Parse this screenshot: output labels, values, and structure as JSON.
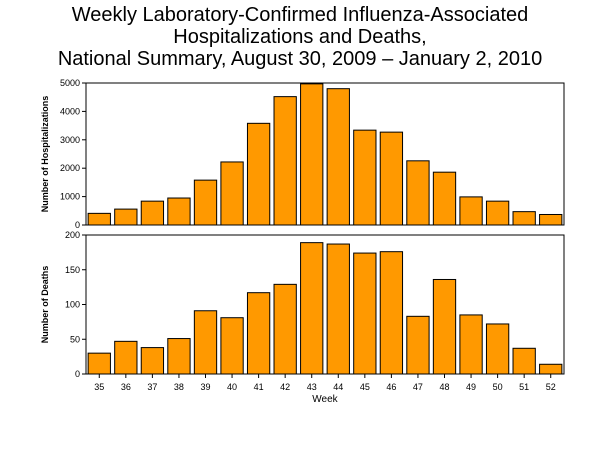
{
  "title_lines": [
    "Weekly Laboratory-Confirmed Influenza-Associated",
    "Hospitalizations and Deaths,",
    "National Summary, August 30, 2009 – January 2, 2010"
  ],
  "bar_color": "#FF9900",
  "chart_data": [
    {
      "type": "bar",
      "title": "Weekly Laboratory-Confirmed Influenza-Associated Hospitalizations and Deaths, National Summary, August 30, 2009 – January 2, 2010",
      "categories": [
        "35",
        "36",
        "37",
        "38",
        "39",
        "40",
        "41",
        "42",
        "43",
        "44",
        "45",
        "46",
        "47",
        "48",
        "49",
        "50",
        "51",
        "52"
      ],
      "values": [
        410,
        560,
        840,
        950,
        1580,
        2220,
        3580,
        4520,
        4970,
        4800,
        3340,
        3270,
        2260,
        1860,
        990,
        840,
        470,
        370
      ],
      "ylabel": "Number of Hospitalizations",
      "xlabel": "",
      "ylim": [
        0,
        5000
      ],
      "yticks": [
        0,
        1000,
        2000,
        3000,
        4000,
        5000
      ]
    },
    {
      "type": "bar",
      "categories": [
        "35",
        "36",
        "37",
        "38",
        "39",
        "40",
        "41",
        "42",
        "43",
        "44",
        "45",
        "46",
        "47",
        "48",
        "49",
        "50",
        "51",
        "52"
      ],
      "values": [
        30,
        47,
        38,
        51,
        91,
        81,
        117,
        129,
        189,
        187,
        174,
        176,
        83,
        136,
        85,
        72,
        37,
        14
      ],
      "ylabel": "Number of Deaths",
      "xlabel": "Week",
      "ylim": [
        0,
        200
      ],
      "yticks": [
        0,
        50,
        100,
        150,
        200
      ]
    }
  ]
}
